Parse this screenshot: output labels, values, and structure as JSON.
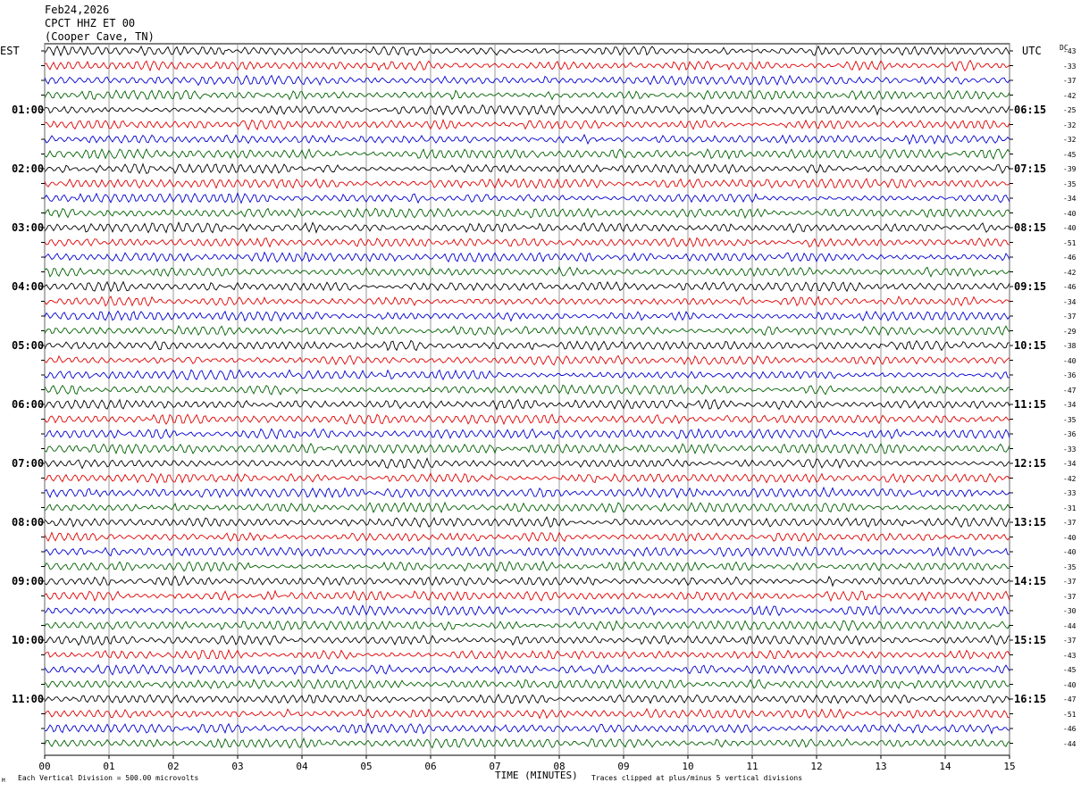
{
  "header": {
    "date": "Feb24,2026",
    "station": "CPCT HHZ ET 00",
    "location": "(Cooper Cave, TN)"
  },
  "left_timezone": "EST",
  "right_timezone": "UTC",
  "dc_label": "DC",
  "footer": {
    "scale_note": "Each Vertical Division =  500.00 microvolts",
    "clip_note": "Traces clipped at plus/minus 5 vertical divisions",
    "corner_mark": "M"
  },
  "colors": {
    "trace_cycle": [
      "#000000",
      "#e00000",
      "#0000d0",
      "#006000"
    ],
    "grid": "#808080"
  },
  "chart_data": {
    "type": "line",
    "title": "",
    "xlabel": "TIME (MINUTES)",
    "ylabel": "",
    "xlim": [
      0,
      15
    ],
    "x_ticks": [
      "00",
      "01",
      "02",
      "03",
      "04",
      "05",
      "06",
      "07",
      "08",
      "09",
      "10",
      "11",
      "12",
      "13",
      "14",
      "15"
    ],
    "left_hour_labels": [
      "01:00",
      "02:00",
      "03:00",
      "04:00",
      "05:00",
      "06:00",
      "07:00",
      "08:00",
      "09:00",
      "10:00",
      "11:00"
    ],
    "right_hour_labels": [
      "06:15",
      "07:15",
      "08:15",
      "09:15",
      "10:15",
      "11:15",
      "12:15",
      "13:15",
      "14:15",
      "15:15",
      "16:15"
    ],
    "dc_offsets": [
      "-43",
      "-33",
      "-37",
      "-42",
      "-25",
      "-32",
      "-32",
      "-45",
      "-39",
      "-35",
      "-34",
      "-40",
      "-40",
      "-51",
      "-46",
      "-42",
      "-46",
      "-34",
      "-37",
      "-29",
      "-38",
      "-40",
      "-36",
      "-47",
      "-34",
      "-35",
      "-36",
      "-33",
      "-34",
      "-42",
      "-33",
      "-31",
      "-37",
      "-40",
      "-40",
      "-35",
      "-37",
      "-37",
      "-30",
      "-44",
      "-37",
      "-43",
      "-45",
      "-40",
      "-47",
      "-51",
      "-46",
      "-44"
    ],
    "traces_per_hour": 4,
    "minutes_per_trace": 15,
    "clip_divisions": 5
  }
}
